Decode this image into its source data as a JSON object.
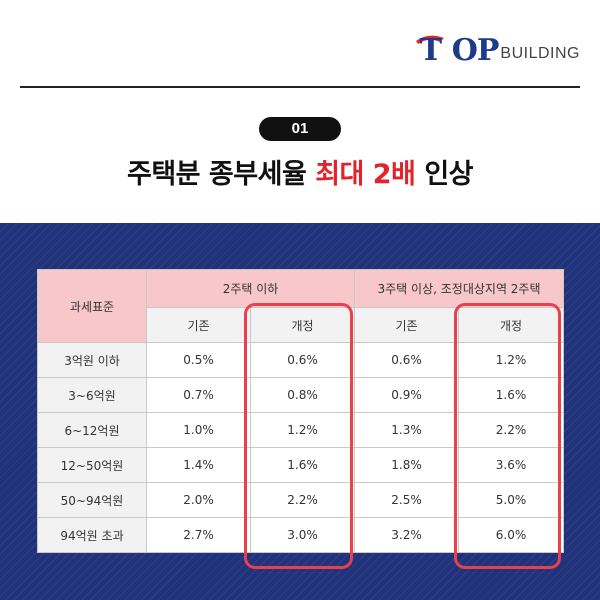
{
  "logo": {
    "mark": "T",
    "text_big": "OP",
    "text_small": "BUILDING"
  },
  "badge": "01",
  "title": {
    "part1": "주택분 종부세율",
    "highlight": "최대 2배",
    "part2": "인상"
  },
  "colors": {
    "navy_bg": "#20327a",
    "accent_red": "#e0242e",
    "header_pink": "#f7c7ca",
    "box_red": "#e8414b"
  },
  "table": {
    "row_header": "과세표준",
    "groups": [
      "2주택 이하",
      "3주택 이상, 조정대상지역 2주택"
    ],
    "subheaders": [
      "기존",
      "개정",
      "기존",
      "개정"
    ],
    "rows": [
      {
        "bracket": "3억원 이하",
        "values": [
          "0.5%",
          "0.6%",
          "0.6%",
          "1.2%"
        ]
      },
      {
        "bracket": "3~6억원",
        "values": [
          "0.7%",
          "0.8%",
          "0.9%",
          "1.6%"
        ]
      },
      {
        "bracket": "6~12억원",
        "values": [
          "1.0%",
          "1.2%",
          "1.3%",
          "2.2%"
        ]
      },
      {
        "bracket": "12~50억원",
        "values": [
          "1.4%",
          "1.6%",
          "1.8%",
          "3.6%"
        ]
      },
      {
        "bracket": "50~94억원",
        "values": [
          "2.0%",
          "2.2%",
          "2.5%",
          "5.0%"
        ]
      },
      {
        "bracket": "94억원 초과",
        "values": [
          "2.7%",
          "3.0%",
          "3.2%",
          "6.0%"
        ]
      }
    ]
  }
}
